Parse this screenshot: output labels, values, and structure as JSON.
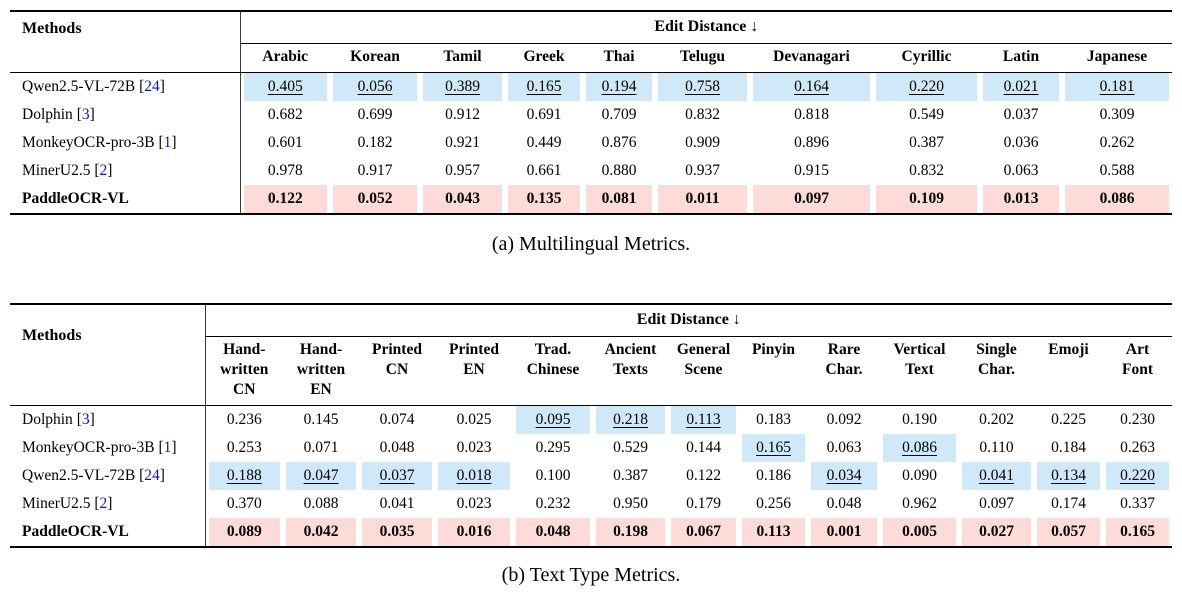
{
  "colors": {
    "highlight_blue": "#cfe9f8",
    "highlight_pink": "#fcdbd9",
    "citation": "#0b0bf0"
  },
  "table_a": {
    "caption": "(a) Multilingual Metrics.",
    "methods_header": "Methods",
    "group_header": "Edit Distance ↓",
    "columns": [
      "Arabic",
      "Korean",
      "Tamil",
      "Greek",
      "Thai",
      "Telugu",
      "Devanagari",
      "Cyrillic",
      "Latin",
      "Japanese"
    ],
    "rows": [
      {
        "method": "Qwen2.5-VL-72B",
        "ref": "24",
        "bold": false,
        "highlight_color": "blue",
        "values": [
          "0.405",
          "0.056",
          "0.389",
          "0.165",
          "0.194",
          "0.758",
          "0.164",
          "0.220",
          "0.021",
          "0.181"
        ],
        "underline": [
          0,
          1,
          2,
          3,
          4,
          5,
          6,
          7,
          8,
          9
        ],
        "highlight": [
          0,
          1,
          2,
          3,
          4,
          5,
          6,
          7,
          8,
          9
        ]
      },
      {
        "method": "Dolphin",
        "ref": "3",
        "bold": false,
        "highlight_color": "",
        "values": [
          "0.682",
          "0.699",
          "0.912",
          "0.691",
          "0.709",
          "0.832",
          "0.818",
          "0.549",
          "0.037",
          "0.309"
        ],
        "underline": [],
        "highlight": []
      },
      {
        "method": "MonkeyOCR-pro-3B",
        "ref": "1",
        "bold": false,
        "highlight_color": "",
        "values": [
          "0.601",
          "0.182",
          "0.921",
          "0.449",
          "0.876",
          "0.909",
          "0.896",
          "0.387",
          "0.036",
          "0.262"
        ],
        "underline": [],
        "highlight": []
      },
      {
        "method": "MinerU2.5",
        "ref": "2",
        "bold": false,
        "highlight_color": "",
        "values": [
          "0.978",
          "0.917",
          "0.957",
          "0.661",
          "0.880",
          "0.937",
          "0.915",
          "0.832",
          "0.063",
          "0.588"
        ],
        "underline": [],
        "highlight": []
      },
      {
        "method": "PaddleOCR-VL",
        "ref": "",
        "bold": true,
        "highlight_color": "pink",
        "values": [
          "0.122",
          "0.052",
          "0.043",
          "0.135",
          "0.081",
          "0.011",
          "0.097",
          "0.109",
          "0.013",
          "0.086"
        ],
        "underline": [],
        "highlight": [
          0,
          1,
          2,
          3,
          4,
          5,
          6,
          7,
          8,
          9
        ]
      }
    ]
  },
  "table_b": {
    "caption": "(b) Text Type Metrics.",
    "methods_header": "Methods",
    "group_header": "Edit Distance ↓",
    "columns": [
      "Hand-\nwritten\nCN",
      "Hand-\nwritten\nEN",
      "Printed\nCN",
      "Printed\nEN",
      "Trad.\nChinese",
      "Ancient\nTexts",
      "General\nScene",
      "Pinyin",
      "Rare\nChar.",
      "Vertical\nText",
      "Single\nChar.",
      "Emoji",
      "Art\nFont"
    ],
    "rows": [
      {
        "method": "Dolphin",
        "ref": "3",
        "bold": false,
        "highlight_color": "blue",
        "values": [
          "0.236",
          "0.145",
          "0.074",
          "0.025",
          "0.095",
          "0.218",
          "0.113",
          "0.183",
          "0.092",
          "0.190",
          "0.202",
          "0.225",
          "0.230"
        ],
        "underline": [
          4,
          5,
          6
        ],
        "highlight": [
          4,
          5,
          6
        ]
      },
      {
        "method": "MonkeyOCR-pro-3B",
        "ref": "1",
        "bold": false,
        "highlight_color": "blue",
        "values": [
          "0.253",
          "0.071",
          "0.048",
          "0.023",
          "0.295",
          "0.529",
          "0.144",
          "0.165",
          "0.063",
          "0.086",
          "0.110",
          "0.184",
          "0.263"
        ],
        "underline": [
          7,
          9
        ],
        "highlight": [
          7,
          9
        ]
      },
      {
        "method": "Qwen2.5-VL-72B",
        "ref": "24",
        "bold": false,
        "highlight_color": "blue",
        "values": [
          "0.188",
          "0.047",
          "0.037",
          "0.018",
          "0.100",
          "0.387",
          "0.122",
          "0.186",
          "0.034",
          "0.090",
          "0.041",
          "0.134",
          "0.220"
        ],
        "underline": [
          0,
          1,
          2,
          3,
          8,
          10,
          11,
          12
        ],
        "highlight": [
          0,
          1,
          2,
          3,
          8,
          10,
          11,
          12
        ]
      },
      {
        "method": "MinerU2.5",
        "ref": "2",
        "bold": false,
        "highlight_color": "",
        "values": [
          "0.370",
          "0.088",
          "0.041",
          "0.023",
          "0.232",
          "0.950",
          "0.179",
          "0.256",
          "0.048",
          "0.962",
          "0.097",
          "0.174",
          "0.337"
        ],
        "underline": [],
        "highlight": []
      },
      {
        "method": "PaddleOCR-VL",
        "ref": "",
        "bold": true,
        "highlight_color": "pink",
        "values": [
          "0.089",
          "0.042",
          "0.035",
          "0.016",
          "0.048",
          "0.198",
          "0.067",
          "0.113",
          "0.001",
          "0.005",
          "0.027",
          "0.057",
          "0.165"
        ],
        "underline": [],
        "highlight": [
          0,
          1,
          2,
          3,
          4,
          5,
          6,
          7,
          8,
          9,
          10,
          11,
          12
        ]
      }
    ]
  }
}
